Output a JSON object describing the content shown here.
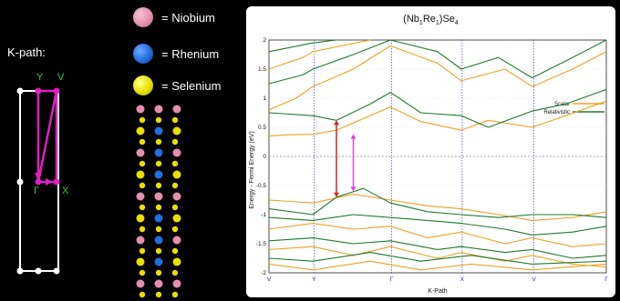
{
  "kpath": {
    "title": "K-path:",
    "labels": [
      "Y",
      "V",
      "Γ",
      "X"
    ]
  },
  "legend": [
    {
      "label": "= Niobium",
      "color": "#e58fb0"
    },
    {
      "label": "= Rhenium",
      "color": "#1f6fe0"
    },
    {
      "label": "= Selenium",
      "color": "#e8e000"
    }
  ],
  "plot": {
    "title_parts": [
      "(Nb",
      "1",
      "Re",
      "1",
      ")Se",
      "4"
    ],
    "ylabel": "Energy - Fermi Energy (eV)",
    "xlabel": "K-Path",
    "yticks": [
      "-2",
      "-1.5",
      "-1",
      "-0.5",
      "0",
      "0.5",
      "1",
      "1.5",
      "2"
    ],
    "ytick_values": [
      -2,
      -1.5,
      -1,
      -0.5,
      0,
      0.5,
      1,
      1.5,
      2
    ],
    "xticks": [
      "V",
      "Y",
      "Γ",
      "X",
      "V",
      "Γ"
    ],
    "ylim": [
      -2,
      2
    ],
    "series": [
      {
        "name": "Scalar",
        "color": "#f0a020"
      },
      {
        "name": "Relativistic",
        "color": "#1f7a2e"
      }
    ],
    "gap_arrow_colors": [
      "#d61f1f",
      "#e040e0"
    ]
  },
  "colors": {
    "kpath_line": "#e020c0",
    "kpath_label": "#30d030",
    "box": "#ffffff",
    "grid": "#2020c0"
  }
}
